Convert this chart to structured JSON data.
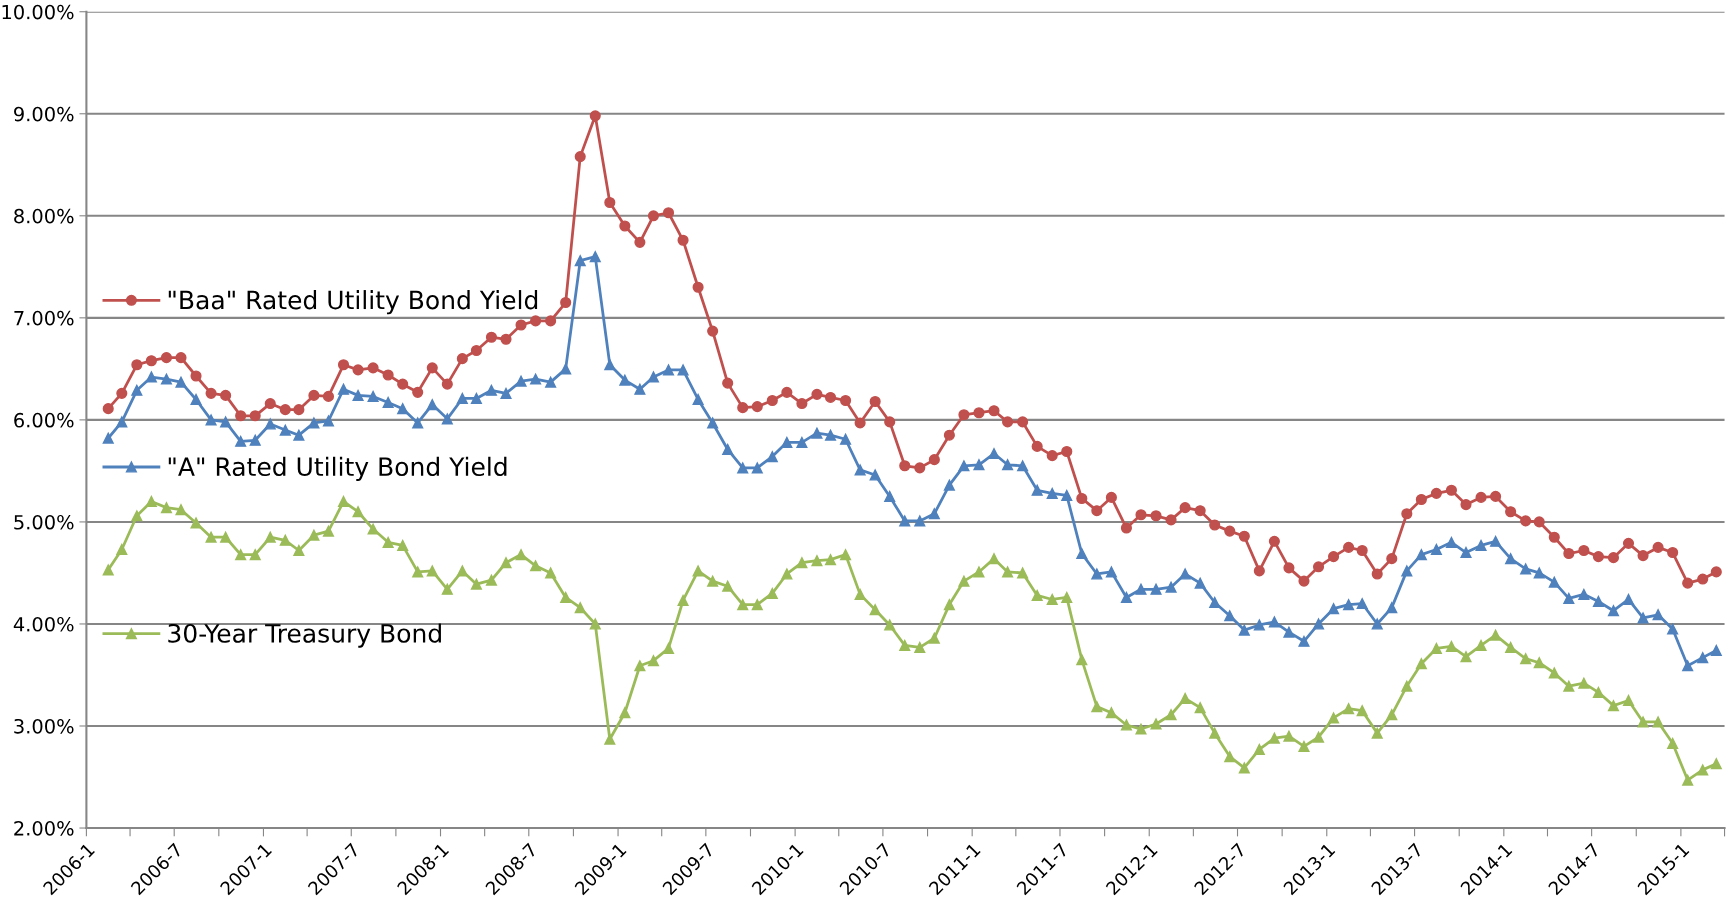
{
  "chart_data": {
    "type": "line",
    "x": [
      "2006-02-15",
      "2006-03-15",
      "2006-04-15",
      "2006-05-15",
      "2006-06-15",
      "2006-07-15",
      "2006-08-15",
      "2006-09-15",
      "2006-10-15",
      "2006-11-15",
      "2006-12-15",
      "2007-01-15",
      "2007-02-15",
      "2007-03-15",
      "2007-04-15",
      "2007-05-15",
      "2007-06-15",
      "2007-07-15",
      "2007-08-15",
      "2007-09-15",
      "2007-10-15",
      "2007-11-15",
      "2007-12-15",
      "2008-01-15",
      "2008-02-15",
      "2008-03-15",
      "2008-04-15",
      "2008-05-15",
      "2008-06-15",
      "2008-07-15",
      "2008-08-15",
      "2008-09-15",
      "2008-10-15",
      "2008-11-15",
      "2008-12-15",
      "2009-01-15",
      "2009-02-15",
      "2009-03-15",
      "2009-04-15",
      "2009-05-15",
      "2009-06-15",
      "2009-07-15",
      "2009-08-15",
      "2009-09-15",
      "2009-10-15",
      "2009-11-15",
      "2009-12-15",
      "2010-01-15",
      "2010-02-15",
      "2010-03-15",
      "2010-04-15",
      "2010-05-15",
      "2010-06-15",
      "2010-07-15",
      "2010-08-15",
      "2010-09-15",
      "2010-10-15",
      "2010-11-15",
      "2010-12-15",
      "2011-01-15",
      "2011-02-15",
      "2011-03-15",
      "2011-04-15",
      "2011-05-15",
      "2011-06-15",
      "2011-07-15",
      "2011-08-15",
      "2011-09-15",
      "2011-10-15",
      "2011-11-15",
      "2011-12-15",
      "2012-01-15",
      "2012-02-15",
      "2012-03-15",
      "2012-04-15",
      "2012-05-15",
      "2012-06-15",
      "2012-07-15",
      "2012-08-15",
      "2012-09-15",
      "2012-10-15",
      "2012-11-15",
      "2012-12-15",
      "2013-01-15",
      "2013-02-15",
      "2013-03-15",
      "2013-04-15",
      "2013-05-15",
      "2013-06-15",
      "2013-07-15",
      "2013-08-15",
      "2013-09-15",
      "2013-10-15",
      "2013-11-15",
      "2013-12-15",
      "2014-01-15",
      "2014-02-15",
      "2014-03-15",
      "2014-04-15",
      "2014-05-15",
      "2014-06-15",
      "2014-07-15",
      "2014-08-15",
      "2014-09-15",
      "2014-10-15",
      "2014-11-15",
      "2014-12-15",
      "2015-01-15",
      "2015-02-15",
      "2015-03-15"
    ],
    "series": [
      {
        "name": "\"Baa\" Rated Utility Bond Yield",
        "color": "#c0504d",
        "marker": "circle",
        "values": [
          6.11,
          6.26,
          6.54,
          6.58,
          6.61,
          6.61,
          6.43,
          6.26,
          6.24,
          6.04,
          6.04,
          6.16,
          6.1,
          6.1,
          6.24,
          6.23,
          6.54,
          6.49,
          6.51,
          6.44,
          6.35,
          6.27,
          6.51,
          6.35,
          6.6,
          6.68,
          6.81,
          6.79,
          6.93,
          6.97,
          6.97,
          7.15,
          8.58,
          8.98,
          8.13,
          7.9,
          7.74,
          8.0,
          8.03,
          7.76,
          7.3,
          6.87,
          6.36,
          6.12,
          6.13,
          6.19,
          6.27,
          6.16,
          6.25,
          6.22,
          6.19,
          5.97,
          6.18,
          5.98,
          5.55,
          5.53,
          5.61,
          5.85,
          6.05,
          6.07,
          6.09,
          5.98,
          5.98,
          5.74,
          5.65,
          5.69,
          5.23,
          5.11,
          5.24,
          4.94,
          5.07,
          5.06,
          5.02,
          5.14,
          5.11,
          4.97,
          4.91,
          4.86,
          4.52,
          4.81,
          4.55,
          4.42,
          4.56,
          4.66,
          4.75,
          4.72,
          4.49,
          4.64,
          5.08,
          5.22,
          5.28,
          5.31,
          5.17,
          5.24,
          5.25,
          5.1,
          5.01,
          5.0,
          4.85,
          4.69,
          4.72,
          4.66,
          4.65,
          4.79,
          4.67,
          4.75,
          4.7,
          4.4,
          4.44,
          4.51
        ]
      },
      {
        "name": "\"A\" Rated Utility Bond Yield",
        "color": "#4f81bd",
        "marker": "triangle",
        "values": [
          5.82,
          5.98,
          6.29,
          6.42,
          6.4,
          6.37,
          6.2,
          6.0,
          5.98,
          5.79,
          5.8,
          5.96,
          5.9,
          5.85,
          5.97,
          5.99,
          6.3,
          6.24,
          6.23,
          6.17,
          6.11,
          5.97,
          6.15,
          6.01,
          6.21,
          6.21,
          6.29,
          6.26,
          6.38,
          6.4,
          6.37,
          6.5,
          7.56,
          7.6,
          6.54,
          6.39,
          6.3,
          6.42,
          6.49,
          6.49,
          6.2,
          5.97,
          5.71,
          5.53,
          5.53,
          5.64,
          5.78,
          5.78,
          5.87,
          5.85,
          5.81,
          5.51,
          5.46,
          5.25,
          5.01,
          5.01,
          5.08,
          5.36,
          5.55,
          5.56,
          5.67,
          5.56,
          5.55,
          5.31,
          5.28,
          5.26,
          4.69,
          4.49,
          4.51,
          4.26,
          4.34,
          4.34,
          4.36,
          4.49,
          4.4,
          4.21,
          4.08,
          3.94,
          3.99,
          4.02,
          3.92,
          3.83,
          4.0,
          4.15,
          4.19,
          4.2,
          4.0,
          4.16,
          4.52,
          4.68,
          4.73,
          4.8,
          4.7,
          4.77,
          4.81,
          4.64,
          4.54,
          4.5,
          4.41,
          4.25,
          4.29,
          4.22,
          4.13,
          4.24,
          4.06,
          4.09,
          3.95,
          3.59,
          3.67,
          3.74
        ]
      },
      {
        "name": "30-Year Treasury Bond",
        "color": "#9bbb59",
        "marker": "triangle",
        "values": [
          4.53,
          4.73,
          5.06,
          5.2,
          5.14,
          5.12,
          4.99,
          4.85,
          4.85,
          4.68,
          4.68,
          4.85,
          4.82,
          4.72,
          4.87,
          4.91,
          5.2,
          5.1,
          4.93,
          4.8,
          4.77,
          4.51,
          4.52,
          4.34,
          4.52,
          4.39,
          4.43,
          4.6,
          4.68,
          4.57,
          4.5,
          4.26,
          4.16,
          4.0,
          2.87,
          3.13,
          3.59,
          3.64,
          3.76,
          4.23,
          4.52,
          4.42,
          4.37,
          4.19,
          4.19,
          4.3,
          4.49,
          4.6,
          4.62,
          4.63,
          4.68,
          4.29,
          4.14,
          3.99,
          3.79,
          3.77,
          3.86,
          4.19,
          4.42,
          4.51,
          4.64,
          4.51,
          4.5,
          4.28,
          4.24,
          4.26,
          3.65,
          3.19,
          3.13,
          3.01,
          2.97,
          3.02,
          3.11,
          3.27,
          3.18,
          2.93,
          2.7,
          2.59,
          2.77,
          2.88,
          2.9,
          2.8,
          2.89,
          3.08,
          3.17,
          3.15,
          2.93,
          3.11,
          3.39,
          3.61,
          3.76,
          3.78,
          3.68,
          3.79,
          3.89,
          3.77,
          3.66,
          3.62,
          3.52,
          3.39,
          3.42,
          3.33,
          3.2,
          3.25,
          3.04,
          3.04,
          2.83,
          2.47,
          2.57,
          2.63
        ]
      }
    ],
    "xlim": [
      "2006-01-01",
      "2015-04-01"
    ],
    "xticks": [
      {
        "value": "2006-01-01",
        "label": "2006-1"
      },
      {
        "value": "2006-04-01",
        "label": null
      },
      {
        "value": "2006-07-01",
        "label": "2006-7"
      },
      {
        "value": "2006-10-01",
        "label": null
      },
      {
        "value": "2007-01-01",
        "label": "2007-1"
      },
      {
        "value": "2007-04-01",
        "label": null
      },
      {
        "value": "2007-07-01",
        "label": "2007-7"
      },
      {
        "value": "2007-10-01",
        "label": null
      },
      {
        "value": "2008-01-01",
        "label": "2008-1"
      },
      {
        "value": "2008-04-01",
        "label": null
      },
      {
        "value": "2008-07-01",
        "label": "2008-7"
      },
      {
        "value": "2008-10-01",
        "label": null
      },
      {
        "value": "2009-01-01",
        "label": "2009-1"
      },
      {
        "value": "2009-04-01",
        "label": null
      },
      {
        "value": "2009-07-01",
        "label": "2009-7"
      },
      {
        "value": "2009-10-01",
        "label": null
      },
      {
        "value": "2010-01-01",
        "label": "2010-1"
      },
      {
        "value": "2010-04-01",
        "label": null
      },
      {
        "value": "2010-07-01",
        "label": "2010-7"
      },
      {
        "value": "2010-10-01",
        "label": null
      },
      {
        "value": "2011-01-01",
        "label": "2011-1"
      },
      {
        "value": "2011-04-01",
        "label": null
      },
      {
        "value": "2011-07-01",
        "label": "2011-7"
      },
      {
        "value": "2011-10-01",
        "label": null
      },
      {
        "value": "2012-01-01",
        "label": "2012-1"
      },
      {
        "value": "2012-04-01",
        "label": null
      },
      {
        "value": "2012-07-01",
        "label": "2012-7"
      },
      {
        "value": "2012-10-01",
        "label": null
      },
      {
        "value": "2013-01-01",
        "label": "2013-1"
      },
      {
        "value": "2013-04-01",
        "label": null
      },
      {
        "value": "2013-07-01",
        "label": "2013-7"
      },
      {
        "value": "2013-10-01",
        "label": null
      },
      {
        "value": "2014-01-01",
        "label": "2014-1"
      },
      {
        "value": "2014-04-01",
        "label": null
      },
      {
        "value": "2014-07-01",
        "label": "2014-7"
      },
      {
        "value": "2014-10-01",
        "label": null
      },
      {
        "value": "2015-01-01",
        "label": "2015-1"
      },
      {
        "value": "2015-04-01",
        "label": null
      }
    ],
    "ylim": [
      2,
      10
    ],
    "yticks": [
      {
        "value": 2,
        "label": "2.00%"
      },
      {
        "value": 3,
        "label": "3.00%"
      },
      {
        "value": 4,
        "label": "4.00%"
      },
      {
        "value": 5,
        "label": "5.00%"
      },
      {
        "value": 6,
        "label": "6.00%"
      },
      {
        "value": 7,
        "label": "7.00%"
      },
      {
        "value": 8,
        "label": "8.00%"
      },
      {
        "value": 9,
        "label": "9.00%"
      },
      {
        "value": 10,
        "label": "10.00%"
      }
    ],
    "grid": "y",
    "legend": "left",
    "line_style": "solid"
  }
}
